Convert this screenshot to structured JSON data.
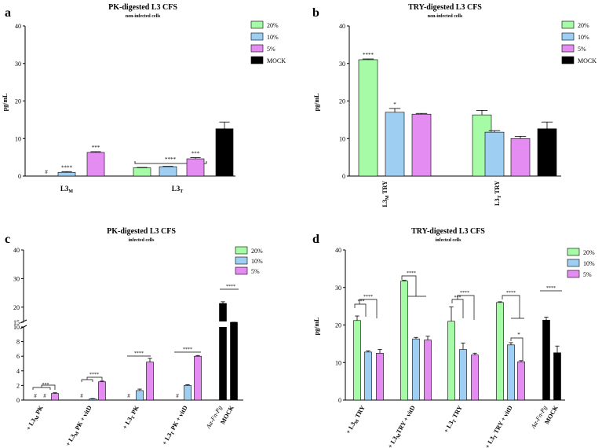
{
  "colors": {
    "20%": "#a6fba6",
    "10%": "#9ecff2",
    "5%": "#e58cf2",
    "MOCK": "#000000"
  },
  "chart_data": [
    {
      "panel": "a",
      "type": "bar",
      "title": "PK-digested L3 CFS",
      "subtitle": "non-infected cells",
      "ylabel": "pg/mL",
      "ylim": [
        0,
        40
      ],
      "yticks": [
        0,
        10,
        20,
        30,
        40
      ],
      "groups": [
        {
          "label": "L3M",
          "bars": [
            {
              "series": "20%",
              "value": 0,
              "err": 0,
              "annot": "#"
            },
            {
              "series": "10%",
              "value": 1.0,
              "err": 0.2,
              "annot": "****"
            },
            {
              "series": "5%",
              "value": 6.3,
              "err": 0.2,
              "annot": "***"
            }
          ]
        },
        {
          "label": "L3T",
          "bars": [
            {
              "series": "20%",
              "value": 2.2,
              "err": 0.1,
              "annot": ""
            },
            {
              "series": "10%",
              "value": 2.5,
              "err": 0.1,
              "annot": ""
            },
            {
              "series": "5%",
              "value": 4.6,
              "err": 0.3,
              "annot": "***"
            },
            {
              "series": "MOCK",
              "value": 12.6,
              "err": 1.8,
              "annot": ""
            }
          ]
        }
      ],
      "brackets": [
        {
          "label": "****"
        }
      ],
      "legend": [
        "20%",
        "10%",
        "5%",
        "MOCK"
      ],
      "legend_position": "top-right"
    },
    {
      "panel": "b",
      "type": "bar",
      "title": "TRY-digested L3 CFS",
      "subtitle": "non-infected cells",
      "ylabel": "pg/mL",
      "ylim": [
        0,
        40
      ],
      "yticks": [
        0,
        10,
        20,
        30,
        40
      ],
      "groups": [
        {
          "label": "L3M TRY",
          "bars": [
            {
              "series": "20%",
              "value": 31.0,
              "err": 0.2,
              "annot": "****"
            },
            {
              "series": "10%",
              "value": 17.0,
              "err": 1.0,
              "annot": "*"
            },
            {
              "series": "5%",
              "value": 16.5,
              "err": 0.2,
              "annot": ""
            }
          ]
        },
        {
          "label": "L3T TRY",
          "bars": [
            {
              "series": "20%",
              "value": 16.3,
              "err": 1.2,
              "annot": ""
            },
            {
              "series": "10%",
              "value": 11.7,
              "err": 0.4,
              "annot": ""
            },
            {
              "series": "5%",
              "value": 10.0,
              "err": 0.6,
              "annot": ""
            },
            {
              "series": "MOCK",
              "value": 12.6,
              "err": 1.8,
              "annot": ""
            }
          ]
        }
      ],
      "legend": [
        "20%",
        "10%",
        "5%",
        "MOCK"
      ],
      "legend_position": "top-right"
    },
    {
      "panel": "c",
      "type": "bar",
      "title": "PK-digested L3 CFS",
      "subtitle": "infected cells",
      "ylim": [
        0,
        40
      ],
      "axis_break": [
        10,
        15
      ],
      "yticks": [
        0,
        2,
        4,
        6,
        8,
        10,
        15,
        20,
        30,
        40
      ],
      "groups": [
        {
          "label": "+ L3M PK",
          "bars": [
            {
              "series": "20%",
              "value": 0,
              "err": 0,
              "annot": "#"
            },
            {
              "series": "10%",
              "value": 0,
              "err": 0,
              "annot": "#"
            },
            {
              "series": "5%",
              "value": 0.9,
              "err": 0.1,
              "annot": ""
            }
          ]
        },
        {
          "label": "+ L3M PK + vitD",
          "bars": [
            {
              "series": "20%",
              "value": 0,
              "err": 0,
              "annot": "#"
            },
            {
              "series": "10%",
              "value": 0.15,
              "err": 0.05,
              "annot": ""
            },
            {
              "series": "5%",
              "value": 2.5,
              "err": 0.1,
              "annot": ""
            }
          ]
        },
        {
          "label": "+ L3T PK",
          "bars": [
            {
              "series": "20%",
              "value": 0,
              "err": 0,
              "annot": "#"
            },
            {
              "series": "10%",
              "value": 1.3,
              "err": 0.2,
              "annot": ""
            },
            {
              "series": "5%",
              "value": 5.2,
              "err": 0.5,
              "annot": ""
            }
          ]
        },
        {
          "label": "+ L3T PK + vitD",
          "bars": [
            {
              "series": "20%",
              "value": 0,
              "err": 0,
              "annot": "#"
            },
            {
              "series": "10%",
              "value": 2.0,
              "err": 0.1,
              "annot": ""
            },
            {
              "series": "5%",
              "value": 6.0,
              "err": 0.1,
              "annot": ""
            }
          ]
        },
        {
          "label": "Aα-Fn-Pg",
          "bars": [
            {
              "series": "MOCK",
              "value": 21.3,
              "err": 0.6,
              "annot": ""
            }
          ]
        },
        {
          "label": "MOCK",
          "bars": [
            {
              "series": "MOCK",
              "value": 12.8,
              "err": 1.2,
              "annot": ""
            }
          ]
        }
      ],
      "brackets": [
        {
          "label": "***"
        },
        {
          "label": "****"
        },
        {
          "label": "****"
        },
        {
          "label": "****"
        },
        {
          "label": "****"
        }
      ],
      "legend": [
        "20%",
        "10%",
        "5%"
      ],
      "legend_position": "top-right"
    },
    {
      "panel": "d",
      "type": "bar",
      "title": "TRY-digested L3 CFS",
      "subtitle": "infected cells",
      "ylabel": "pg/mL",
      "ylim": [
        0,
        40
      ],
      "yticks": [
        0,
        10,
        20,
        30,
        40
      ],
      "groups": [
        {
          "label": "+ L3M TRY",
          "bars": [
            {
              "series": "20%",
              "value": 21.2,
              "err": 1.2,
              "annot": ""
            },
            {
              "series": "10%",
              "value": 12.8,
              "err": 0.3,
              "annot": ""
            },
            {
              "series": "5%",
              "value": 12.5,
              "err": 1.0,
              "annot": ""
            }
          ]
        },
        {
          "label": "+ L3M TRY + vitD",
          "bars": [
            {
              "series": "20%",
              "value": 31.7,
              "err": 0.2,
              "annot": ""
            },
            {
              "series": "10%",
              "value": 16.3,
              "err": 0.4,
              "annot": ""
            },
            {
              "series": "5%",
              "value": 16.0,
              "err": 1.0,
              "annot": ""
            }
          ]
        },
        {
          "label": "+ L3T TRY",
          "bars": [
            {
              "series": "20%",
              "value": 21.0,
              "err": 3.8,
              "annot": ""
            },
            {
              "series": "10%",
              "value": 13.5,
              "err": 1.7,
              "annot": ""
            },
            {
              "series": "5%",
              "value": 12.0,
              "err": 0.5,
              "annot": ""
            }
          ]
        },
        {
          "label": "+ L3T TRY + vitD",
          "bars": [
            {
              "series": "20%",
              "value": 26.0,
              "err": 0.2,
              "annot": ""
            },
            {
              "series": "10%",
              "value": 14.7,
              "err": 0.6,
              "annot": ""
            },
            {
              "series": "5%",
              "value": 10.2,
              "err": 0.3,
              "annot": ""
            }
          ]
        },
        {
          "label": "Aα-Fn-Pg",
          "bars": [
            {
              "series": "MOCK",
              "value": 21.3,
              "err": 0.8,
              "annot": ""
            }
          ]
        },
        {
          "label": "MOCK",
          "bars": [
            {
              "series": "MOCK",
              "value": 12.6,
              "err": 1.8,
              "annot": ""
            }
          ]
        }
      ],
      "brackets": [
        {
          "label": "***"
        },
        {
          "label": "****"
        },
        {
          "label": "****"
        },
        {
          "label": "***"
        },
        {
          "label": "****"
        },
        {
          "label": "****"
        },
        {
          "label": "*"
        },
        {
          "label": "****"
        }
      ],
      "legend": [
        "20%",
        "10%",
        "5%"
      ],
      "legend_position": "top-right"
    }
  ]
}
